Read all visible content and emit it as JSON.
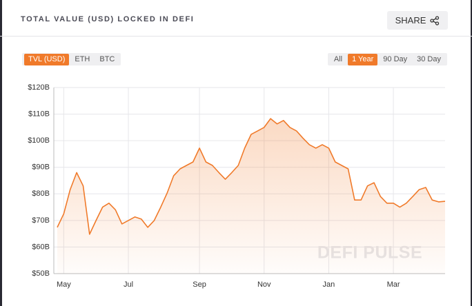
{
  "header": {
    "title": "TOTAL VALUE (USD) LOCKED IN DEFI",
    "share": "SHARE"
  },
  "tabs": [
    "TVL (USD)",
    "ETH",
    "BTC"
  ],
  "ranges": [
    "All",
    "1 Year",
    "90 Day",
    "30 Day"
  ],
  "chart_data": {
    "type": "line",
    "watermark": "DEFI PULSE",
    "color": "#f07a2a",
    "grid": true,
    "categories": [
      null,
      "May",
      null,
      null,
      null,
      null,
      null,
      null,
      null,
      null,
      null,
      "Jul",
      null,
      null,
      null,
      null,
      null,
      null,
      null,
      null,
      null,
      null,
      "Sep",
      null,
      null,
      null,
      null,
      null,
      null,
      null,
      null,
      null,
      "Nov",
      null,
      null,
      null,
      null,
      null,
      null,
      null,
      null,
      null,
      "Jan",
      null,
      null,
      null,
      null,
      null,
      null,
      null,
      null,
      null,
      "Mar",
      null,
      null,
      null,
      null,
      null,
      null,
      null,
      null
    ],
    "values": [
      67.4,
      72.5,
      81.6,
      88,
      83,
      64.8,
      70,
      75,
      76.5,
      74,
      68.7,
      70,
      71.3,
      70.5,
      67.4,
      70,
      75,
      80.3,
      86.8,
      89.4,
      90.7,
      92,
      97.2,
      92,
      90.7,
      88,
      85.5,
      88,
      90.7,
      97.2,
      102.4,
      103.7,
      105,
      108.3,
      106.3,
      107.6,
      105,
      103.7,
      101,
      98.5,
      97.2,
      98.5,
      97.2,
      92,
      90.7,
      89.4,
      77.7,
      77.7,
      83,
      84.2,
      79,
      76.5,
      76.5,
      75,
      76.5,
      79,
      81.6,
      82.4,
      77.7,
      77,
      77.2
    ],
    "ylim": [
      50,
      120
    ],
    "yticks": [
      {
        "value": 50,
        "label": "$50B"
      },
      {
        "value": 60,
        "label": "$60B"
      },
      {
        "value": 70,
        "label": "$70B"
      },
      {
        "value": 80,
        "label": "$80B"
      },
      {
        "value": 90,
        "label": "$90B"
      },
      {
        "value": 100,
        "label": "$100B"
      },
      {
        "value": 110,
        "label": "$110B"
      },
      {
        "value": 120,
        "label": "$120B"
      }
    ]
  }
}
